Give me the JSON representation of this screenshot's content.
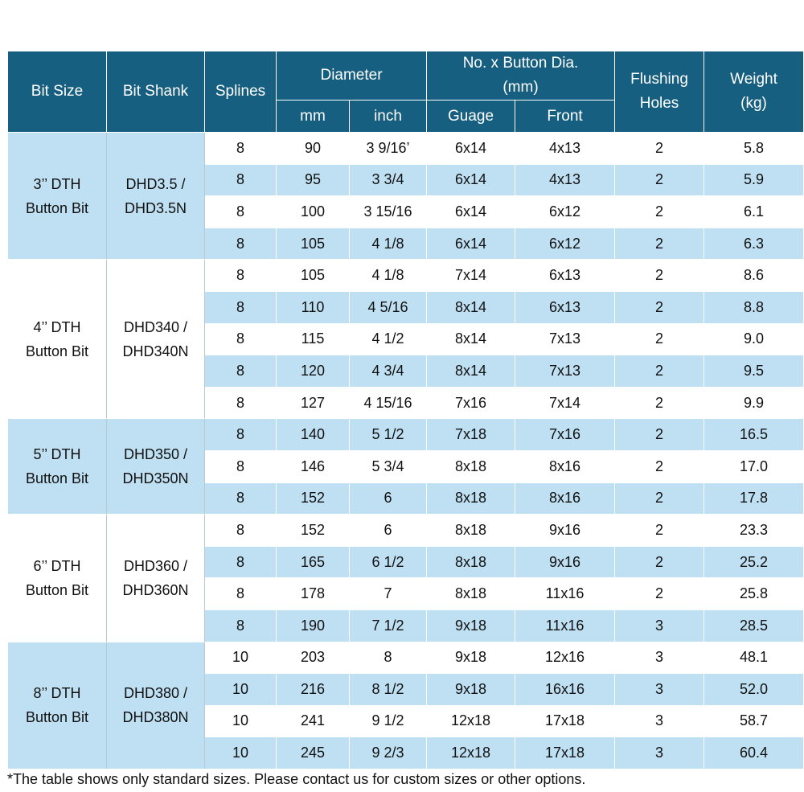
{
  "headers": {
    "bit_size": "Bit Size",
    "bit_shank": "Bit Shank",
    "splines": "Splines",
    "diameter": "Diameter",
    "diameter_mm": "mm",
    "diameter_inch": "inch",
    "button_dia_line1": "No. x Button Dia.",
    "button_dia_line2": "(mm)",
    "guage": "Guage",
    "front": "Front",
    "flushing_line1": "Flushing",
    "flushing_line2": "Holes",
    "weight_line1": "Weight",
    "weight_line2": "(kg)"
  },
  "groups": [
    {
      "bit_size_line1": "3’’ DTH",
      "bit_size_line2": "Button Bit",
      "shank_line1": "DHD3.5 /",
      "shank_line2": "DHD3.5N",
      "rows": [
        {
          "splines": "8",
          "mm": "90",
          "inch": "3 9/16’",
          "guage": "6x14",
          "front": "4x13",
          "holes": "2",
          "weight": "5.8"
        },
        {
          "splines": "8",
          "mm": "95",
          "inch": "3 3/4",
          "guage": "6x14",
          "front": "4x13",
          "holes": "2",
          "weight": "5.9"
        },
        {
          "splines": "8",
          "mm": "100",
          "inch": "3 15/16",
          "guage": "6x14",
          "front": "6x12",
          "holes": "2",
          "weight": "6.1"
        },
        {
          "splines": "8",
          "mm": "105",
          "inch": "4 1/8",
          "guage": "6x14",
          "front": "6x12",
          "holes": "2",
          "weight": "6.3"
        }
      ]
    },
    {
      "bit_size_line1": "4’’ DTH",
      "bit_size_line2": "Button Bit",
      "shank_line1": "DHD340 /",
      "shank_line2": "DHD340N",
      "rows": [
        {
          "splines": "8",
          "mm": "105",
          "inch": "4 1/8",
          "guage": "7x14",
          "front": "6x13",
          "holes": "2",
          "weight": "8.6"
        },
        {
          "splines": "8",
          "mm": "110",
          "inch": "4 5/16",
          "guage": "8x14",
          "front": "6x13",
          "holes": "2",
          "weight": "8.8"
        },
        {
          "splines": "8",
          "mm": "115",
          "inch": "4 1/2",
          "guage": "8x14",
          "front": "7x13",
          "holes": "2",
          "weight": "9.0"
        },
        {
          "splines": "8",
          "mm": "120",
          "inch": "4 3/4",
          "guage": "8x14",
          "front": "7x13",
          "holes": "2",
          "weight": "9.5"
        },
        {
          "splines": "8",
          "mm": "127",
          "inch": "4 15/16",
          "guage": "7x16",
          "front": "7x14",
          "holes": "2",
          "weight": "9.9"
        }
      ]
    },
    {
      "bit_size_line1": "5’’ DTH",
      "bit_size_line2": "Button Bit",
      "shank_line1": "DHD350 /",
      "shank_line2": "DHD350N",
      "rows": [
        {
          "splines": "8",
          "mm": "140",
          "inch": "5 1/2",
          "guage": "7x18",
          "front": "7x16",
          "holes": "2",
          "weight": "16.5"
        },
        {
          "splines": "8",
          "mm": "146",
          "inch": "5 3/4",
          "guage": "8x18",
          "front": "8x16",
          "holes": "2",
          "weight": "17.0"
        },
        {
          "splines": "8",
          "mm": "152",
          "inch": "6",
          "guage": "8x18",
          "front": "8x16",
          "holes": "2",
          "weight": "17.8"
        }
      ]
    },
    {
      "bit_size_line1": "6’’ DTH",
      "bit_size_line2": "Button Bit",
      "shank_line1": "DHD360 /",
      "shank_line2": "DHD360N",
      "rows": [
        {
          "splines": "8",
          "mm": "152",
          "inch": "6",
          "guage": "8x18",
          "front": "9x16",
          "holes": "2",
          "weight": "23.3"
        },
        {
          "splines": "8",
          "mm": "165",
          "inch": "6 1/2",
          "guage": "8x18",
          "front": "9x16",
          "holes": "2",
          "weight": "25.2"
        },
        {
          "splines": "8",
          "mm": "178",
          "inch": "7",
          "guage": "8x18",
          "front": "11x16",
          "holes": "2",
          "weight": "25.8"
        },
        {
          "splines": "8",
          "mm": "190",
          "inch": "7 1/2",
          "guage": "9x18",
          "front": "11x16",
          "holes": "3",
          "weight": "28.5"
        }
      ]
    },
    {
      "bit_size_line1": "8’’ DTH",
      "bit_size_line2": "Button Bit",
      "shank_line1": "DHD380 /",
      "shank_line2": "DHD380N",
      "rows": [
        {
          "splines": "10",
          "mm": "203",
          "inch": "8",
          "guage": "9x18",
          "front": "12x16",
          "holes": "3",
          "weight": "48.1"
        },
        {
          "splines": "10",
          "mm": "216",
          "inch": "8 1/2",
          "guage": "9x18",
          "front": "16x16",
          "holes": "3",
          "weight": "52.0"
        },
        {
          "splines": "10",
          "mm": "241",
          "inch": "9 1/2",
          "guage": "12x18",
          "front": "17x18",
          "holes": "3",
          "weight": "58.7"
        },
        {
          "splines": "10",
          "mm": "245",
          "inch": "9 2/3",
          "guage": "12x18",
          "front": "17x18",
          "holes": "3",
          "weight": "60.4"
        }
      ]
    }
  ],
  "footnote": "*The table shows only standard sizes. Please contact us for custom sizes or other options."
}
